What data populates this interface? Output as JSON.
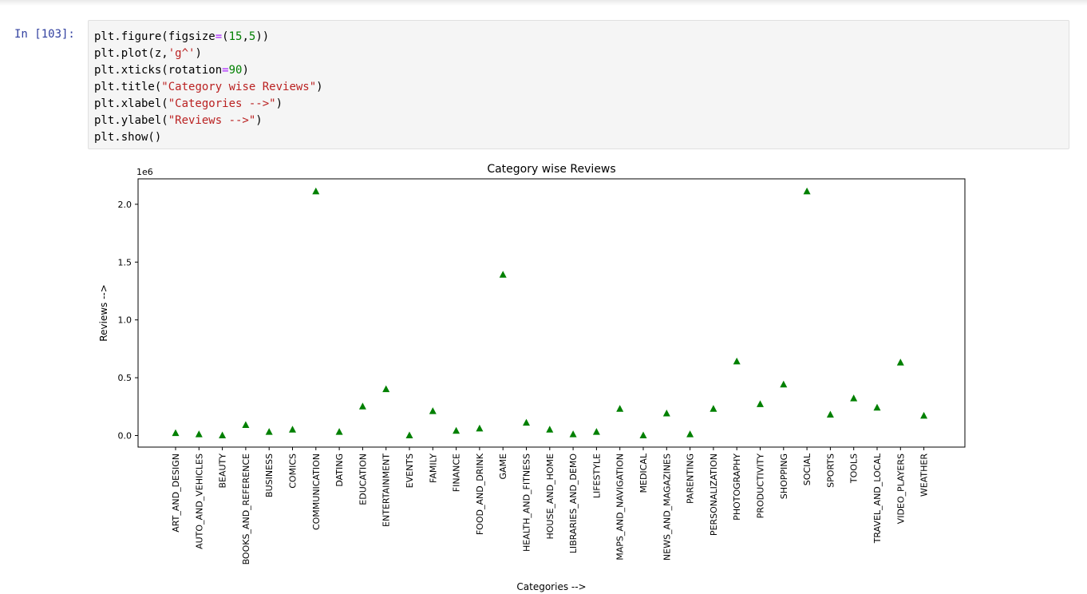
{
  "cell": {
    "prompt": "In [103]:",
    "code_lines": [
      [
        {
          "t": "plt.figure(figsize"
        },
        {
          "t": "=",
          "c": "op"
        },
        {
          "t": "("
        },
        {
          "t": "15",
          "c": "num"
        },
        {
          "t": ","
        },
        {
          "t": "5",
          "c": "num"
        },
        {
          "t": "))"
        }
      ],
      [
        {
          "t": "plt.plot(z,"
        },
        {
          "t": "'g^'",
          "c": "str"
        },
        {
          "t": ")"
        }
      ],
      [
        {
          "t": "plt.xticks(rotation"
        },
        {
          "t": "=",
          "c": "op"
        },
        {
          "t": "90",
          "c": "num"
        },
        {
          "t": ")"
        }
      ],
      [
        {
          "t": "plt.title("
        },
        {
          "t": "\"Category wise Reviews\"",
          "c": "str"
        },
        {
          "t": ")"
        }
      ],
      [
        {
          "t": "plt.xlabel("
        },
        {
          "t": "\"Categories -->\"",
          "c": "str"
        },
        {
          "t": ")"
        }
      ],
      [
        {
          "t": "plt.ylabel("
        },
        {
          "t": "\"Reviews -->\"",
          "c": "str"
        },
        {
          "t": ")"
        }
      ],
      [
        {
          "t": "plt.show()"
        }
      ]
    ]
  },
  "colors": {
    "prompt": "#303f9f",
    "string": "#ba2121",
    "number": "#008000",
    "operator": "#aa22ff",
    "marker": "#008000"
  },
  "chart_data": {
    "type": "scatter",
    "marker": "triangle-up",
    "title": "Category wise Reviews",
    "xlabel": "Categories -->",
    "ylabel": "Reviews -->",
    "y_offset_text": "1e6",
    "y_ticks": [
      "0.0",
      "0.5",
      "1.0",
      "1.5",
      "2.0"
    ],
    "y_tick_values": [
      0,
      0.5,
      1.0,
      1.5,
      2.0
    ],
    "ylim": [
      -0.1,
      2.22
    ],
    "categories": [
      "ART_AND_DESIGN",
      "AUTO_AND_VEHICLES",
      "BEAUTY",
      "BOOKS_AND_REFERENCE",
      "BUSINESS",
      "COMICS",
      "COMMUNICATION",
      "DATING",
      "EDUCATION",
      "ENTERTAINMENT",
      "EVENTS",
      "FAMILY",
      "FINANCE",
      "FOOD_AND_DRINK",
      "GAME",
      "HEALTH_AND_FITNESS",
      "HOUSE_AND_HOME",
      "LIBRARIES_AND_DEMO",
      "LIFESTYLE",
      "MAPS_AND_NAVIGATION",
      "MEDICAL",
      "NEWS_AND_MAGAZINES",
      "PARENTING",
      "PERSONALIZATION",
      "PHOTOGRAPHY",
      "PRODUCTIVITY",
      "SHOPPING",
      "SOCIAL",
      "SPORTS",
      "TOOLS",
      "TRAVEL_AND_LOCAL",
      "VIDEO_PLAYERS",
      "WEATHER"
    ],
    "values": [
      0.02,
      0.01,
      0.0,
      0.09,
      0.03,
      0.05,
      2.11,
      0.03,
      0.25,
      0.4,
      0.0,
      0.21,
      0.04,
      0.06,
      1.39,
      0.11,
      0.05,
      0.01,
      0.03,
      0.23,
      0.0,
      0.19,
      0.01,
      0.23,
      0.64,
      0.27,
      0.44,
      2.11,
      0.18,
      0.32,
      0.24,
      0.63,
      0.17
    ],
    "grid": false,
    "legend": false
  }
}
